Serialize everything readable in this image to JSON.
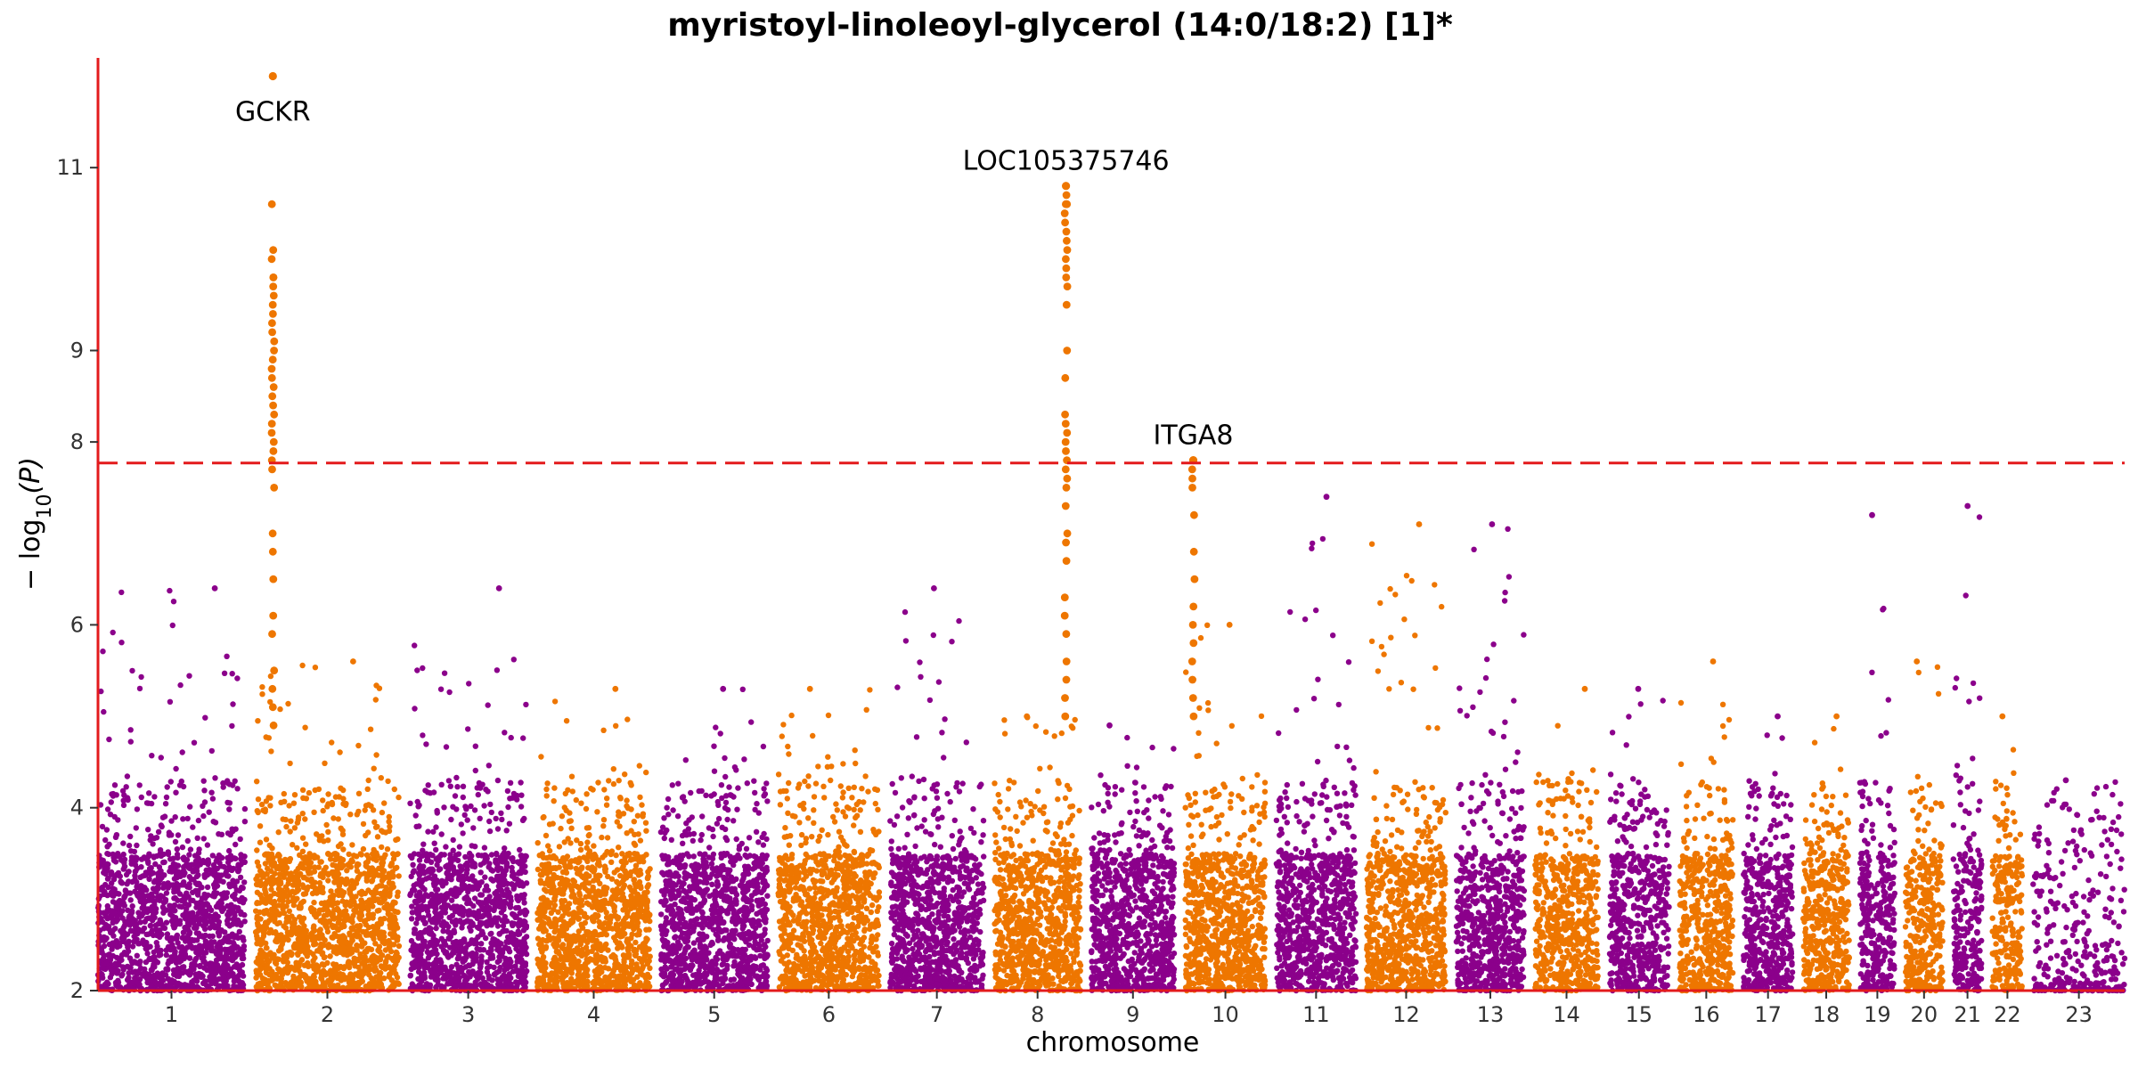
{
  "chart_data": {
    "type": "scatter",
    "subtype": "manhattan",
    "title": "myristoyl-linoleoyl-glycerol (14:0/18:2) [1]*",
    "xlabel": "chromosome",
    "ylabel_parts": {
      "prefix": "− log",
      "subscript": "10",
      "suffix": "(P)"
    },
    "ylim": [
      2,
      12.2
    ],
    "yticks": [
      2,
      4,
      6,
      8,
      9,
      11
    ],
    "ytick_values": [
      2,
      4,
      6,
      8,
      9,
      11
    ],
    "ytick_labels": [
      "2",
      "4",
      "6",
      "8",
      "9",
      "11"
    ],
    "threshold": 7.77,
    "threshold_style": "dashed",
    "colors": {
      "odd": "#8B008B",
      "even": "#EE7600",
      "axis": "#E31A1C",
      "threshold": "#E31A1C"
    },
    "chromosomes": [
      {
        "label": "1",
        "length": 249,
        "max": 6.4,
        "density": 1.0
      },
      {
        "label": "2",
        "length": 243,
        "max": 5.6,
        "density": 1.0
      },
      {
        "label": "3",
        "length": 198,
        "max": 6.4,
        "density": 1.0
      },
      {
        "label": "4",
        "length": 191,
        "max": 5.3,
        "density": 1.0
      },
      {
        "label": "5",
        "length": 181,
        "max": 5.3,
        "density": 1.0
      },
      {
        "label": "6",
        "length": 171,
        "max": 5.3,
        "density": 1.0
      },
      {
        "label": "7",
        "length": 159,
        "max": 6.4,
        "density": 1.0
      },
      {
        "label": "8",
        "length": 146,
        "max": 5.0,
        "density": 1.0
      },
      {
        "label": "9",
        "length": 141,
        "max": 4.9,
        "density": 1.0
      },
      {
        "label": "10",
        "length": 136,
        "max": 6.0,
        "density": 1.0
      },
      {
        "label": "11",
        "length": 135,
        "max": 7.4,
        "density": 1.0
      },
      {
        "label": "12",
        "length": 134,
        "max": 7.1,
        "density": 1.0
      },
      {
        "label": "13",
        "length": 115,
        "max": 7.1,
        "density": 1.0
      },
      {
        "label": "14",
        "length": 107,
        "max": 5.3,
        "density": 0.9
      },
      {
        "label": "15",
        "length": 102,
        "max": 5.3,
        "density": 0.9
      },
      {
        "label": "16",
        "length": 90,
        "max": 5.6,
        "density": 0.9
      },
      {
        "label": "17",
        "length": 83,
        "max": 5.0,
        "density": 0.9
      },
      {
        "label": "18",
        "length": 78,
        "max": 5.0,
        "density": 0.9
      },
      {
        "label": "19",
        "length": 59,
        "max": 7.2,
        "density": 0.9
      },
      {
        "label": "20",
        "length": 63,
        "max": 5.6,
        "density": 0.9
      },
      {
        "label": "21",
        "length": 48,
        "max": 7.3,
        "density": 0.8
      },
      {
        "label": "22",
        "length": 51,
        "max": 5.0,
        "density": 0.8
      },
      {
        "label": "23",
        "length": 155,
        "max": 4.3,
        "density": 0.35,
        "low": true
      }
    ],
    "peaks": [
      {
        "chrom": "2",
        "pos": 0.12,
        "label": "GCKR",
        "top": 12.0,
        "values": [
          10.6,
          10.1,
          10.0,
          9.8,
          9.8,
          9.7,
          9.6,
          9.5,
          9.4,
          9.3,
          9.2,
          9.1,
          9.0,
          8.9,
          8.8,
          8.7,
          8.6,
          8.5,
          8.4,
          8.3,
          8.2,
          8.1,
          8.0,
          7.9,
          7.8,
          7.7,
          7.5,
          7.0,
          6.8,
          6.5,
          6.1,
          5.9,
          5.5,
          5.3,
          5.1,
          4.9
        ]
      },
      {
        "chrom": "8",
        "pos": 0.83,
        "label": "LOC105375746",
        "top": 10.8,
        "values": [
          10.7,
          10.6,
          10.6,
          10.5,
          10.4,
          10.3,
          10.2,
          10.1,
          10.0,
          9.9,
          9.8,
          9.7,
          9.5,
          9.0,
          8.7,
          8.3,
          8.2,
          8.1,
          8.0,
          7.9,
          7.8,
          7.7,
          7.6,
          7.5,
          7.3,
          7.0,
          6.9,
          6.7,
          6.3,
          6.1,
          5.9,
          5.6,
          5.4,
          5.2,
          5.0
        ]
      },
      {
        "chrom": "10",
        "pos": 0.1,
        "label": "ITGA8",
        "top": 7.8,
        "values": [
          7.8,
          7.7,
          7.6,
          7.5,
          7.2,
          6.8,
          6.5,
          6.2,
          6.0,
          5.8,
          5.6,
          5.4,
          5.2,
          5.0
        ]
      }
    ]
  }
}
